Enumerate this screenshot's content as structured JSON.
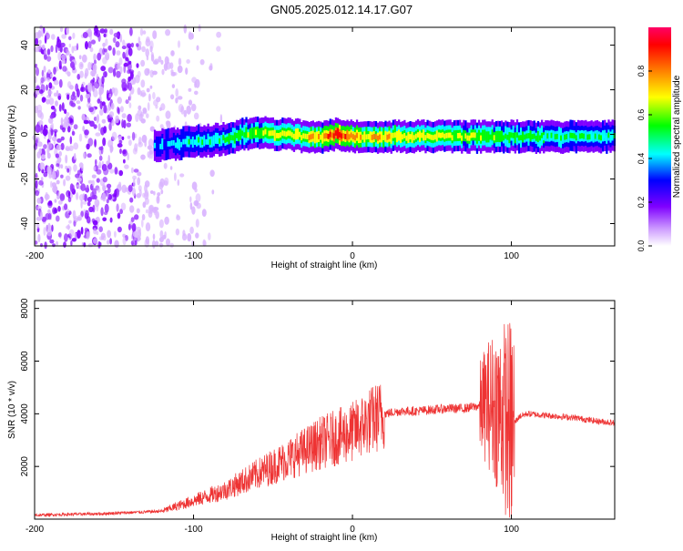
{
  "title": "GN05.2025.012.14.17.G07",
  "chart_data": [
    {
      "type": "heatmap",
      "xlabel": "Height of straight line (km)",
      "ylabel": "Frequency (Hz)",
      "xlim": [
        -200,
        165
      ],
      "ylim": [
        -50,
        48
      ],
      "x_ticks": [
        "-200",
        "-100",
        "0",
        "100"
      ],
      "y_ticks": [
        "-40",
        "-20",
        "0",
        "20",
        "40"
      ],
      "colorbar": {
        "label": "Normalized spectral amplitude",
        "range": [
          0,
          1
        ],
        "ticks": [
          "0.0",
          "0.2",
          "0.4",
          "0.6",
          "0.8"
        ],
        "colors": [
          "#ffffff",
          "#cc99ff",
          "#7f00ff",
          "#0000ff",
          "#00ffff",
          "#00ff00",
          "#ffff00",
          "#ff8000",
          "#ff0000",
          "#ff0066"
        ]
      },
      "trace": {
        "x": [
          -125,
          -110,
          -95,
          -80,
          -70,
          -60,
          -50,
          -40,
          -30,
          -20,
          -10,
          0,
          20,
          50,
          80,
          95,
          120,
          165
        ],
        "frequency": [
          -5,
          -4,
          -3,
          -2,
          0,
          1,
          0,
          0,
          -1,
          -1,
          0,
          -1,
          -1,
          -1,
          -1,
          -1,
          -1,
          -1
        ],
        "amplitude": [
          0.3,
          0.35,
          0.4,
          0.45,
          0.5,
          0.55,
          0.6,
          0.6,
          0.65,
          0.7,
          0.9,
          0.7,
          0.65,
          0.6,
          0.55,
          0.5,
          0.45,
          0.4
        ]
      },
      "noise_region_x": [
        -200,
        -120
      ]
    },
    {
      "type": "line",
      "xlabel": "Height of straight line (km)",
      "ylabel": "SNR (10 * v/v)",
      "xlim": [
        -200,
        165
      ],
      "ylim": [
        0,
        8300
      ],
      "x_ticks": [
        "-200",
        "-100",
        "0",
        "100"
      ],
      "y_ticks": [
        "2000",
        "4000",
        "6000",
        "8000"
      ],
      "color": "#ee3333",
      "series": [
        {
          "x": [
            -200,
            -180,
            -160,
            -140,
            -120,
            -110,
            -100,
            -90,
            -80,
            -70,
            -60,
            -50,
            -40,
            -30,
            -20,
            -10,
            0,
            10,
            20,
            30,
            40,
            50,
            60,
            70,
            80,
            85,
            90,
            95,
            100,
            105,
            110,
            120,
            130,
            140,
            150,
            165
          ],
          "y": [
            150,
            180,
            200,
            250,
            300,
            500,
            700,
            900,
            1100,
            1400,
            1700,
            2000,
            2300,
            2600,
            2900,
            3100,
            3300,
            3700,
            4000,
            4100,
            4100,
            4150,
            4200,
            4200,
            4300,
            4400,
            4300,
            4000,
            3500,
            3900,
            4000,
            3950,
            3900,
            3850,
            3750,
            3650
          ]
        }
      ]
    }
  ]
}
